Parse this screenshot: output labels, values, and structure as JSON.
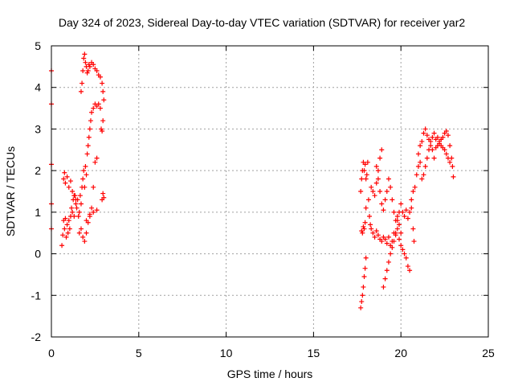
{
  "chart_data": {
    "type": "scatter",
    "title": "Day 324 of 2023, Sidereal Day-to-day VTEC variation (SDTVAR) for receiver yar2",
    "xlabel": "GPS time / hours",
    "ylabel": "SDTVAR / TECUs",
    "xlim": [
      0,
      25
    ],
    "ylim": [
      -2,
      5
    ],
    "xticks": [
      0,
      5,
      10,
      15,
      20,
      25
    ],
    "yticks": [
      -2,
      -1,
      0,
      1,
      2,
      3,
      4,
      5
    ],
    "grid": true,
    "marker": "plus",
    "color": "#ff0000",
    "series": [
      {
        "name": "yar2",
        "points": [
          [
            0.0,
            4.4
          ],
          [
            0.0,
            3.6
          ],
          [
            0.0,
            2.15
          ],
          [
            0.0,
            1.2
          ],
          [
            0.0,
            0.6
          ],
          [
            0.6,
            0.2
          ],
          [
            0.65,
            0.45
          ],
          [
            0.7,
            0.8
          ],
          [
            0.75,
            0.6
          ],
          [
            0.8,
            0.85
          ],
          [
            0.85,
            0.4
          ],
          [
            0.9,
            0.7
          ],
          [
            0.95,
            0.5
          ],
          [
            1.0,
            0.8
          ],
          [
            1.05,
            0.6
          ],
          [
            1.1,
            0.9
          ],
          [
            1.15,
            1.1
          ],
          [
            1.2,
            1.0
          ],
          [
            1.25,
            1.3
          ],
          [
            1.3,
            0.9
          ],
          [
            1.35,
            1.4
          ],
          [
            1.4,
            1.2
          ],
          [
            1.45,
            1.1
          ],
          [
            1.5,
            1.3
          ],
          [
            1.55,
            0.9
          ],
          [
            1.6,
            1.0
          ],
          [
            1.65,
            1.4
          ],
          [
            1.7,
            1.2
          ],
          [
            1.75,
            1.6
          ],
          [
            1.8,
            1.8
          ],
          [
            1.85,
            2.0
          ],
          [
            1.9,
            1.6
          ],
          [
            1.95,
            2.1
          ],
          [
            2.0,
            1.9
          ],
          [
            2.05,
            2.4
          ],
          [
            2.1,
            2.6
          ],
          [
            2.15,
            2.8
          ],
          [
            2.2,
            3.0
          ],
          [
            2.25,
            3.2
          ],
          [
            2.3,
            3.4
          ],
          [
            2.4,
            3.5
          ],
          [
            2.5,
            3.6
          ],
          [
            2.6,
            3.55
          ],
          [
            2.7,
            3.6
          ],
          [
            2.8,
            3.5
          ],
          [
            2.85,
            3.0
          ],
          [
            2.9,
            2.95
          ],
          [
            2.95,
            3.2
          ],
          [
            3.0,
            3.7
          ],
          [
            0.7,
            1.8
          ],
          [
            0.75,
            1.95
          ],
          [
            0.8,
            1.7
          ],
          [
            0.9,
            1.85
          ],
          [
            1.0,
            1.6
          ],
          [
            1.1,
            1.75
          ],
          [
            1.2,
            1.5
          ],
          [
            1.3,
            1.4
          ],
          [
            1.4,
            1.3
          ],
          [
            1.7,
            3.9
          ],
          [
            1.75,
            4.1
          ],
          [
            1.8,
            4.4
          ],
          [
            1.85,
            4.7
          ],
          [
            1.9,
            4.8
          ],
          [
            1.95,
            4.6
          ],
          [
            2.0,
            4.5
          ],
          [
            2.05,
            4.35
          ],
          [
            2.1,
            4.4
          ],
          [
            2.15,
            4.55
          ],
          [
            2.2,
            4.5
          ],
          [
            2.3,
            4.6
          ],
          [
            2.4,
            4.55
          ],
          [
            2.5,
            4.45
          ],
          [
            2.6,
            4.4
          ],
          [
            2.7,
            4.3
          ],
          [
            2.8,
            4.25
          ],
          [
            2.9,
            4.1
          ],
          [
            2.95,
            3.9
          ],
          [
            1.6,
            0.5
          ],
          [
            1.7,
            0.6
          ],
          [
            1.8,
            0.4
          ],
          [
            1.9,
            0.3
          ],
          [
            2.0,
            0.5
          ],
          [
            2.1,
            0.75
          ],
          [
            2.2,
            0.9
          ],
          [
            2.3,
            1.1
          ],
          [
            2.4,
            1.6
          ],
          [
            2.5,
            2.2
          ],
          [
            2.6,
            2.3
          ],
          [
            2.9,
            1.3
          ],
          [
            2.95,
            1.45
          ],
          [
            3.0,
            1.35
          ],
          [
            2.0,
            0.8
          ],
          [
            2.2,
            0.95
          ],
          [
            2.4,
            1.0
          ],
          [
            2.6,
            1.05
          ],
          [
            17.7,
            -1.3
          ],
          [
            17.75,
            -1.15
          ],
          [
            17.8,
            -1.0
          ],
          [
            17.85,
            -0.8
          ],
          [
            17.9,
            -0.55
          ],
          [
            17.95,
            -0.35
          ],
          [
            18.0,
            -0.1
          ],
          [
            17.75,
            0.55
          ],
          [
            17.8,
            0.5
          ],
          [
            17.85,
            0.65
          ],
          [
            17.9,
            0.6
          ],
          [
            17.95,
            0.75
          ],
          [
            18.0,
            1.1
          ],
          [
            17.7,
            1.5
          ],
          [
            17.75,
            1.8
          ],
          [
            17.8,
            2.0
          ],
          [
            17.85,
            2.2
          ],
          [
            17.9,
            2.0
          ],
          [
            17.95,
            2.15
          ],
          [
            18.0,
            1.8
          ],
          [
            18.05,
            1.9
          ],
          [
            18.1,
            2.2
          ],
          [
            18.15,
            1.3
          ],
          [
            18.2,
            0.9
          ],
          [
            18.25,
            0.7
          ],
          [
            18.3,
            0.6
          ],
          [
            18.4,
            0.5
          ],
          [
            18.5,
            0.4
          ],
          [
            18.6,
            0.55
          ],
          [
            18.7,
            0.45
          ],
          [
            18.8,
            0.35
          ],
          [
            18.9,
            0.3
          ],
          [
            19.0,
            0.4
          ],
          [
            18.3,
            1.6
          ],
          [
            18.4,
            1.5
          ],
          [
            18.5,
            1.4
          ],
          [
            18.6,
            1.7
          ],
          [
            18.7,
            2.0
          ],
          [
            18.8,
            2.3
          ],
          [
            18.9,
            2.5
          ],
          [
            18.6,
            2.1
          ],
          [
            18.7,
            1.8
          ],
          [
            18.8,
            1.5
          ],
          [
            18.9,
            1.2
          ],
          [
            19.0,
            1.05
          ],
          [
            19.1,
            1.3
          ],
          [
            19.2,
            1.5
          ],
          [
            19.3,
            1.8
          ],
          [
            19.4,
            1.6
          ],
          [
            19.5,
            1.3
          ],
          [
            19.1,
            0.35
          ],
          [
            19.2,
            0.25
          ],
          [
            19.3,
            0.4
          ],
          [
            19.4,
            0.2
          ],
          [
            19.5,
            0.3
          ],
          [
            19.6,
            0.5
          ],
          [
            19.7,
            0.45
          ],
          [
            19.8,
            0.6
          ],
          [
            19.9,
            0.35
          ],
          [
            20.0,
            0.2
          ],
          [
            20.1,
            0.1
          ],
          [
            20.2,
            0.0
          ],
          [
            20.3,
            -0.1
          ],
          [
            20.4,
            -0.3
          ],
          [
            20.5,
            -0.4
          ],
          [
            19.0,
            -0.8
          ],
          [
            19.1,
            -0.6
          ],
          [
            19.2,
            -0.4
          ],
          [
            19.3,
            -0.2
          ],
          [
            19.4,
            0.0
          ],
          [
            19.5,
            0.15
          ],
          [
            19.6,
            0.3
          ],
          [
            19.7,
            0.5
          ],
          [
            19.8,
            0.8
          ],
          [
            19.9,
            1.0
          ],
          [
            20.0,
            1.2
          ],
          [
            20.1,
            1.0
          ],
          [
            20.2,
            0.9
          ],
          [
            20.3,
            1.05
          ],
          [
            20.4,
            0.85
          ],
          [
            20.5,
            1.0
          ],
          [
            20.6,
            1.1
          ],
          [
            20.7,
            0.6
          ],
          [
            20.75,
            0.3
          ],
          [
            19.6,
            1.0
          ],
          [
            19.7,
            0.8
          ],
          [
            19.8,
            0.9
          ],
          [
            19.9,
            0.7
          ],
          [
            20.0,
            0.5
          ],
          [
            20.6,
            1.3
          ],
          [
            20.7,
            1.5
          ],
          [
            20.8,
            1.6
          ],
          [
            20.9,
            1.9
          ],
          [
            21.0,
            2.1
          ],
          [
            21.1,
            2.2
          ],
          [
            21.2,
            1.8
          ],
          [
            21.3,
            1.9
          ],
          [
            21.4,
            2.1
          ],
          [
            21.5,
            2.3
          ],
          [
            21.6,
            2.5
          ],
          [
            21.7,
            2.7
          ],
          [
            21.8,
            2.8
          ],
          [
            21.9,
            2.9
          ],
          [
            22.0,
            2.75
          ],
          [
            22.1,
            2.8
          ],
          [
            22.2,
            2.7
          ],
          [
            22.3,
            2.75
          ],
          [
            22.4,
            2.8
          ],
          [
            22.5,
            2.9
          ],
          [
            22.6,
            2.95
          ],
          [
            22.7,
            2.85
          ],
          [
            22.8,
            2.6
          ],
          [
            22.9,
            2.3
          ],
          [
            22.95,
            2.1
          ],
          [
            23.0,
            1.85
          ],
          [
            21.0,
            2.4
          ],
          [
            21.1,
            2.6
          ],
          [
            21.2,
            2.7
          ],
          [
            21.3,
            2.9
          ],
          [
            21.4,
            3.0
          ],
          [
            21.5,
            2.85
          ],
          [
            21.6,
            2.75
          ],
          [
            21.7,
            2.6
          ],
          [
            21.8,
            2.5
          ],
          [
            21.9,
            2.3
          ],
          [
            22.0,
            2.55
          ],
          [
            22.1,
            2.6
          ],
          [
            22.2,
            2.65
          ],
          [
            22.3,
            2.6
          ],
          [
            22.4,
            2.55
          ],
          [
            22.5,
            2.5
          ],
          [
            22.6,
            2.4
          ],
          [
            22.7,
            2.3
          ],
          [
            22.8,
            2.2
          ]
        ]
      }
    ]
  }
}
